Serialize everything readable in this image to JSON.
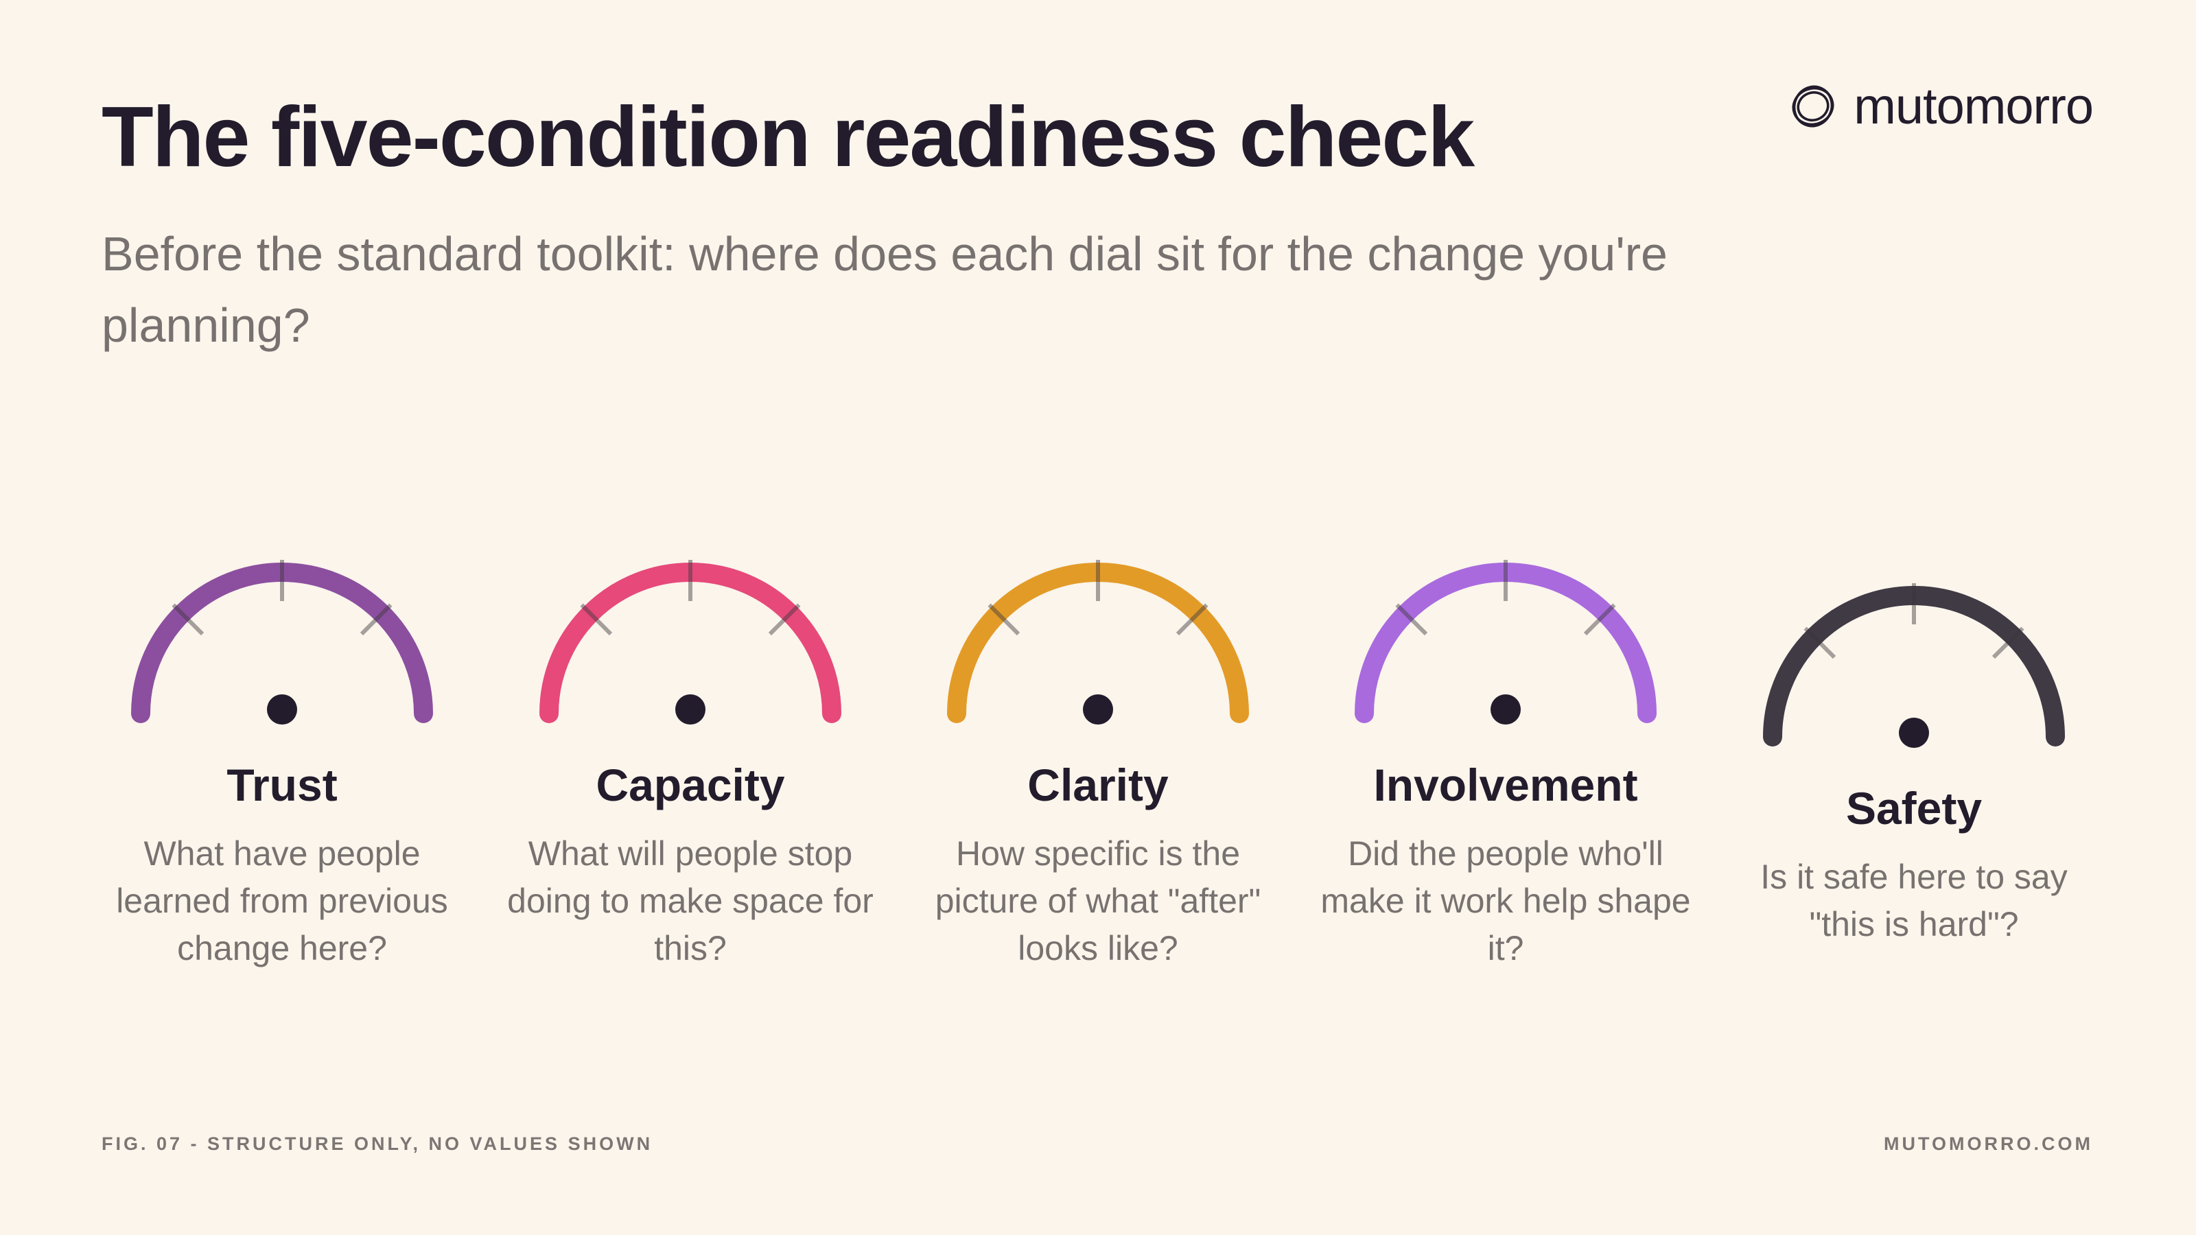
{
  "title": "The five-condition readiness check",
  "subtitle": "Before the standard toolkit: where does each dial sit for the change you're planning?",
  "brand": {
    "name": "mutomorro",
    "icon": "circle-swirl-logo-icon"
  },
  "dials": [
    {
      "label": "Trust",
      "question": "What have people learned from previous change here?",
      "color": "#8c4f9f"
    },
    {
      "label": "Capacity",
      "question": "What will people stop doing to make space for this?",
      "color": "#e6497a"
    },
    {
      "label": "Clarity",
      "question": "How specific is the picture of what \"after\" looks like?",
      "color": "#e39b28"
    },
    {
      "label": "Involvement",
      "question": "Did the people who'll make it work help shape it?",
      "color": "#a96ade"
    },
    {
      "label": "Safety",
      "question": "Is it safe here to say \"this is hard\"?",
      "color": "#3f3a44"
    }
  ],
  "footer": {
    "left": "FIG. 07 - STRUCTURE ONLY, NO VALUES SHOWN",
    "right": "MUTOMORRO.COM"
  }
}
